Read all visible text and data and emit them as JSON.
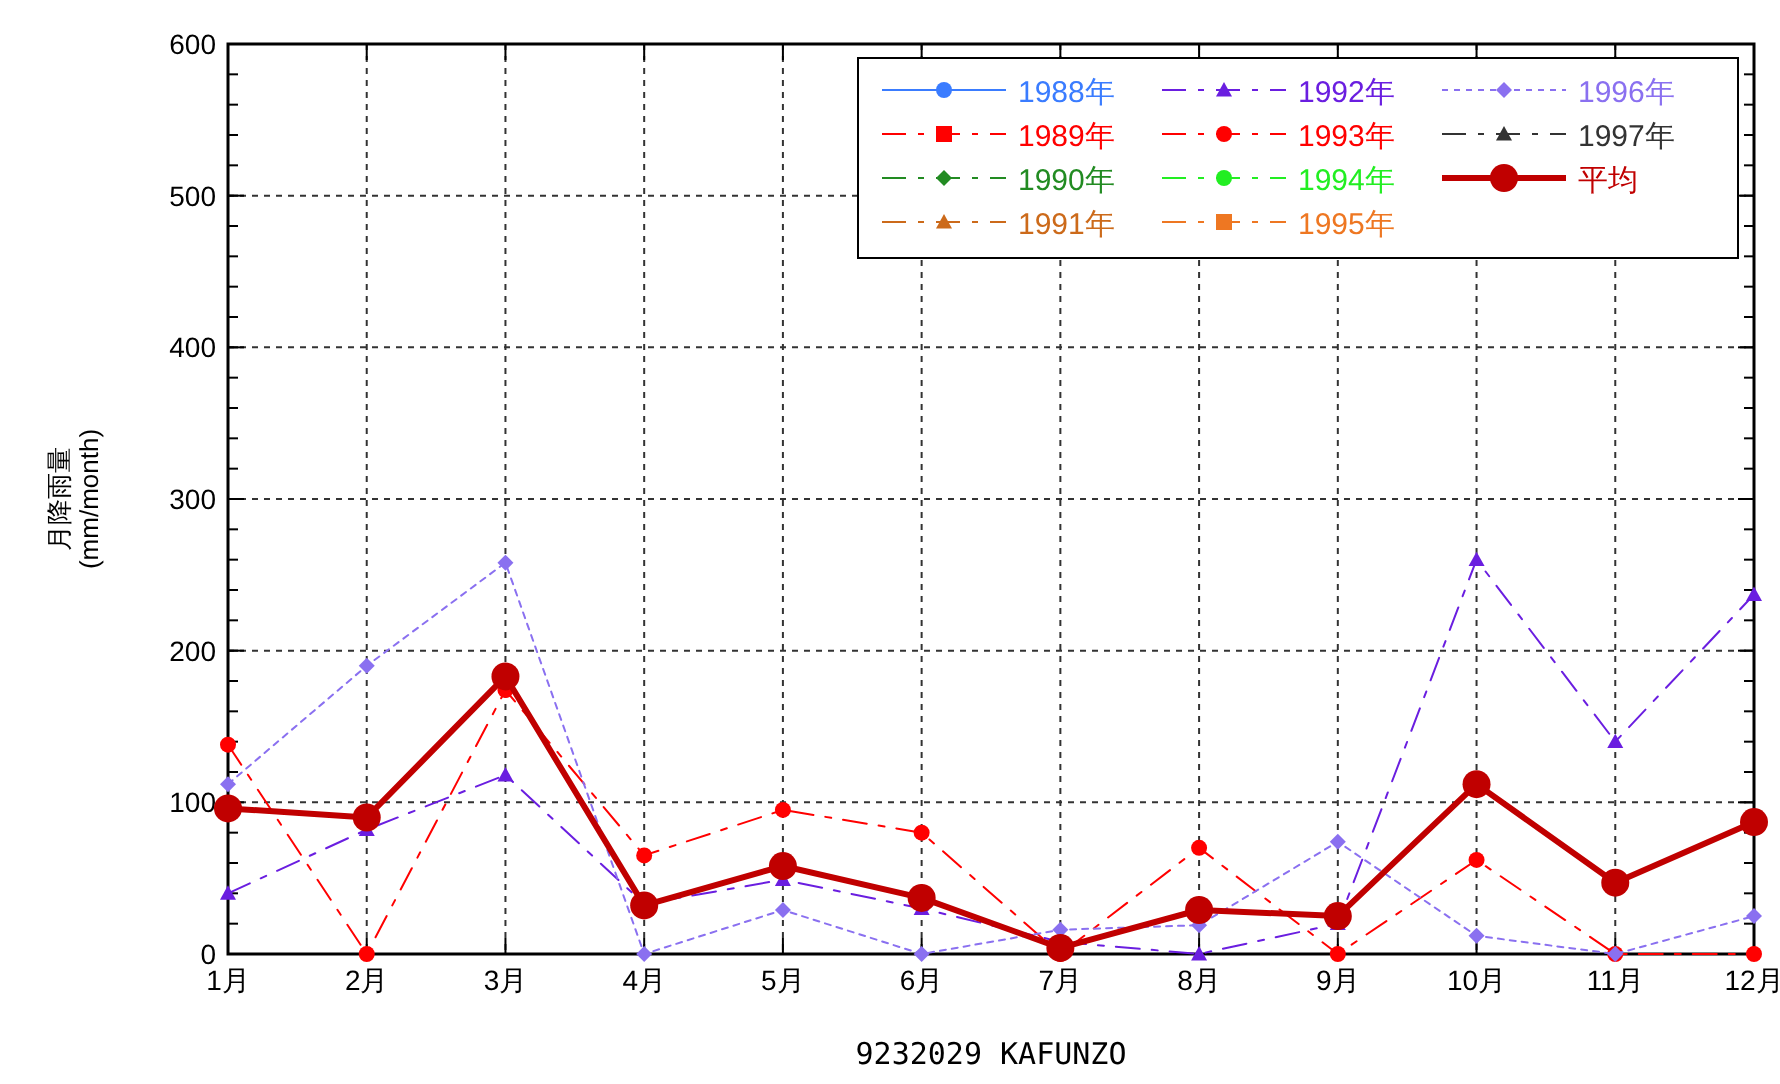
{
  "chart_data": {
    "type": "line",
    "xlabel": "9232029 KAFUNZO",
    "ylabel": "月降雨量\n(mm/month)",
    "categories": [
      "1月",
      "2月",
      "3月",
      "4月",
      "5月",
      "6月",
      "7月",
      "8月",
      "9月",
      "10月",
      "11月",
      "12月"
    ],
    "ylim": [
      0,
      600
    ],
    "yticks": [
      0,
      100,
      200,
      300,
      400,
      500,
      600
    ],
    "grid": true,
    "legend": "top right",
    "series": [
      {
        "name": "1988年",
        "color": "#3a7cff",
        "marker": "circle",
        "line_style": "solid",
        "values": [
          null,
          null,
          null,
          null,
          null,
          null,
          null,
          null,
          null,
          null,
          null,
          null
        ]
      },
      {
        "name": "1989年",
        "color": "#ff0000",
        "marker": "square",
        "line_style": "dashed",
        "values": [
          null,
          null,
          null,
          null,
          null,
          null,
          null,
          null,
          null,
          null,
          null,
          null
        ]
      },
      {
        "name": "1990年",
        "color": "#228b22",
        "marker": "diamond",
        "line_style": "dashed",
        "values": [
          null,
          null,
          null,
          null,
          null,
          null,
          null,
          null,
          null,
          null,
          null,
          null
        ]
      },
      {
        "name": "1991年",
        "color": "#cc6a1a",
        "marker": "triangle",
        "line_style": "dashed",
        "values": [
          null,
          null,
          null,
          null,
          null,
          null,
          null,
          null,
          null,
          null,
          null,
          null
        ]
      },
      {
        "name": "1992年",
        "color": "#6a1ee0",
        "marker": "triangle",
        "line_style": "dashed",
        "values": [
          40,
          82,
          118,
          33,
          49,
          30,
          8,
          0,
          20,
          260,
          140,
          237
        ]
      },
      {
        "name": "1993年",
        "color": "#ff0000",
        "marker": "circle",
        "line_style": "dashed",
        "values": [
          138,
          0,
          174,
          65,
          95,
          80,
          0,
          70,
          0,
          62,
          0,
          0
        ]
      },
      {
        "name": "1994年",
        "color": "#22ee22",
        "marker": "circle",
        "line_style": "dashed",
        "values": [
          null,
          null,
          null,
          null,
          null,
          null,
          null,
          null,
          null,
          null,
          null,
          null
        ]
      },
      {
        "name": "1995年",
        "color": "#ee7722",
        "marker": "square",
        "line_style": "dashed",
        "values": [
          null,
          null,
          null,
          null,
          null,
          null,
          null,
          null,
          null,
          null,
          null,
          null
        ]
      },
      {
        "name": "1996年",
        "color": "#8a70f0",
        "marker": "diamond",
        "line_style": "dotted",
        "values": [
          112,
          190,
          258,
          0,
          29,
          0,
          16,
          19,
          74,
          12,
          0,
          25
        ]
      },
      {
        "name": "1997年",
        "color": "#333333",
        "marker": "triangle",
        "line_style": "dashed",
        "values": [
          null,
          null,
          null,
          null,
          null,
          null,
          null,
          null,
          null,
          null,
          null,
          null
        ]
      },
      {
        "name": "平均",
        "color": "#c00000",
        "marker": "circle",
        "line_style": "solid",
        "values": [
          96,
          90,
          183,
          32,
          58,
          37,
          4,
          29,
          25,
          112,
          47,
          87
        ]
      }
    ]
  }
}
